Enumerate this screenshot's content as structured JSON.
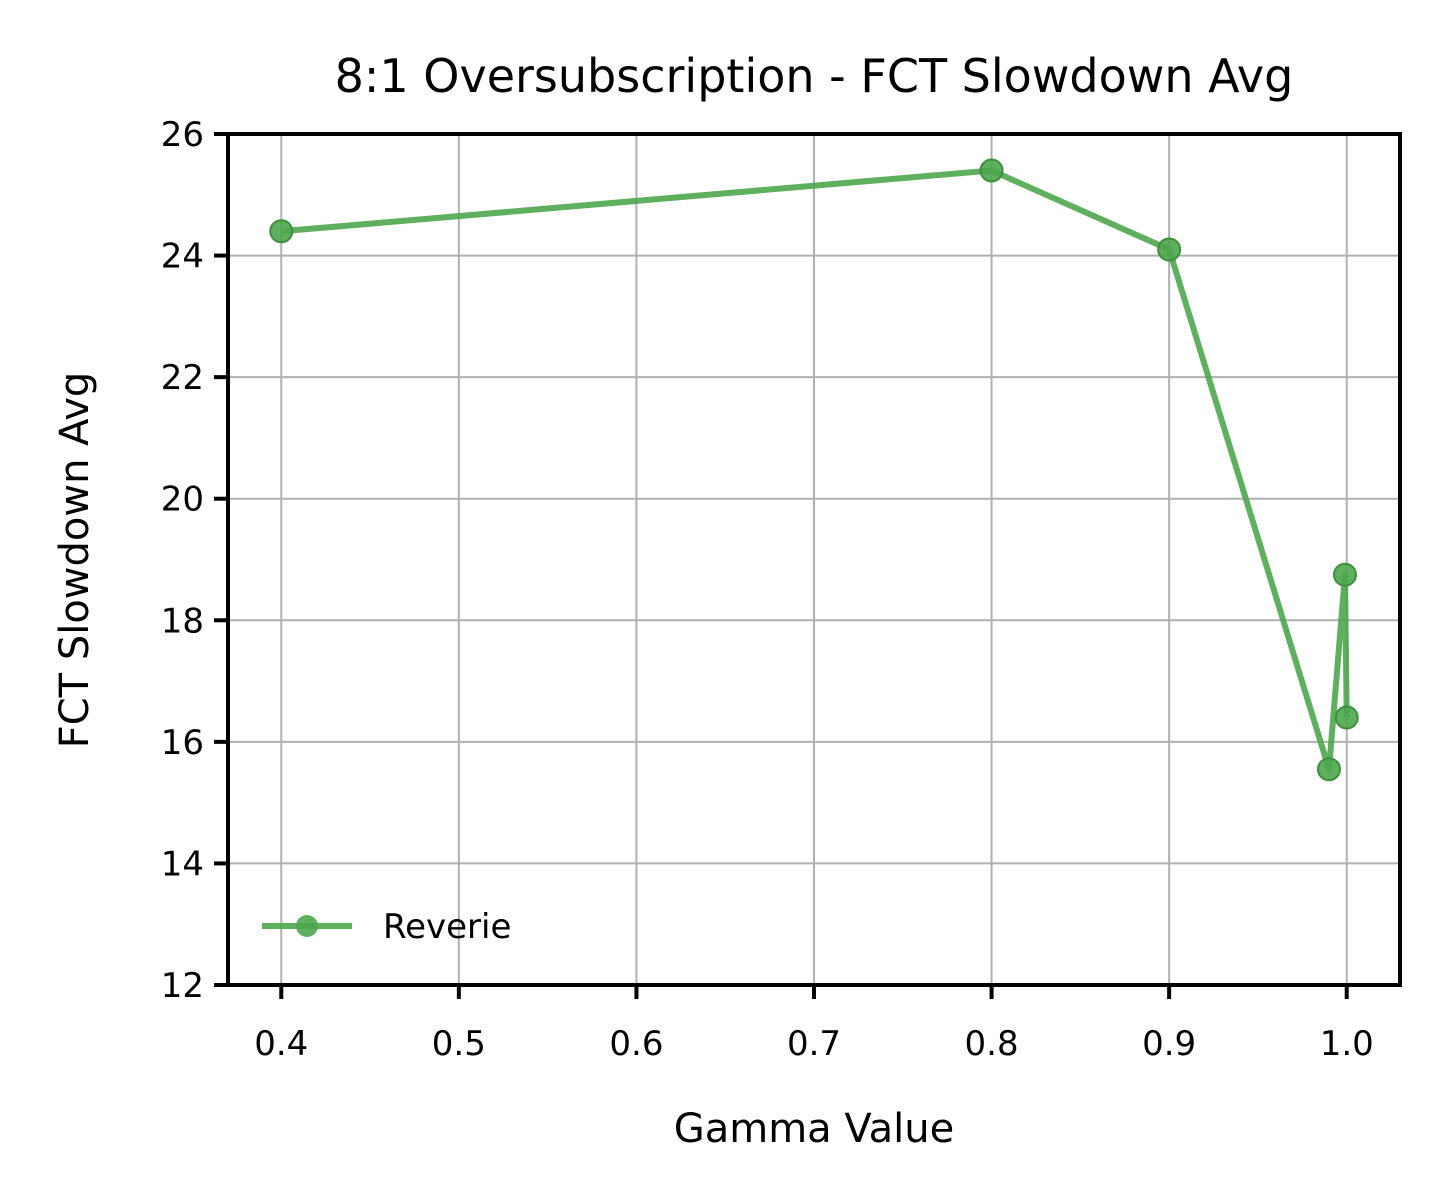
{
  "chart_data": {
    "type": "line",
    "title": "8:1 Oversubscription - FCT Slowdown Avg",
    "xlabel": "Gamma Value",
    "ylabel": "FCT Slowdown Avg",
    "xlim": [
      0.37,
      1.03
    ],
    "ylim": [
      12,
      26
    ],
    "xticks": [
      0.4,
      0.5,
      0.6,
      0.7,
      0.8,
      0.9,
      1.0
    ],
    "xtick_labels": [
      "0.4",
      "0.5",
      "0.6",
      "0.7",
      "0.8",
      "0.9",
      "1.0"
    ],
    "yticks": [
      12,
      14,
      16,
      18,
      20,
      22,
      24,
      26
    ],
    "ytick_labels": [
      "12",
      "14",
      "16",
      "18",
      "20",
      "22",
      "24",
      "26"
    ],
    "grid": true,
    "legend_position": "lower-left",
    "series": [
      {
        "name": "Reverie",
        "color": "#4CA64C",
        "marker": "circle",
        "x": [
          0.4,
          0.8,
          0.9,
          0.99,
          0.999,
          1.0
        ],
        "y": [
          24.4,
          25.4,
          24.1,
          15.55,
          18.75,
          16.4
        ]
      }
    ]
  }
}
